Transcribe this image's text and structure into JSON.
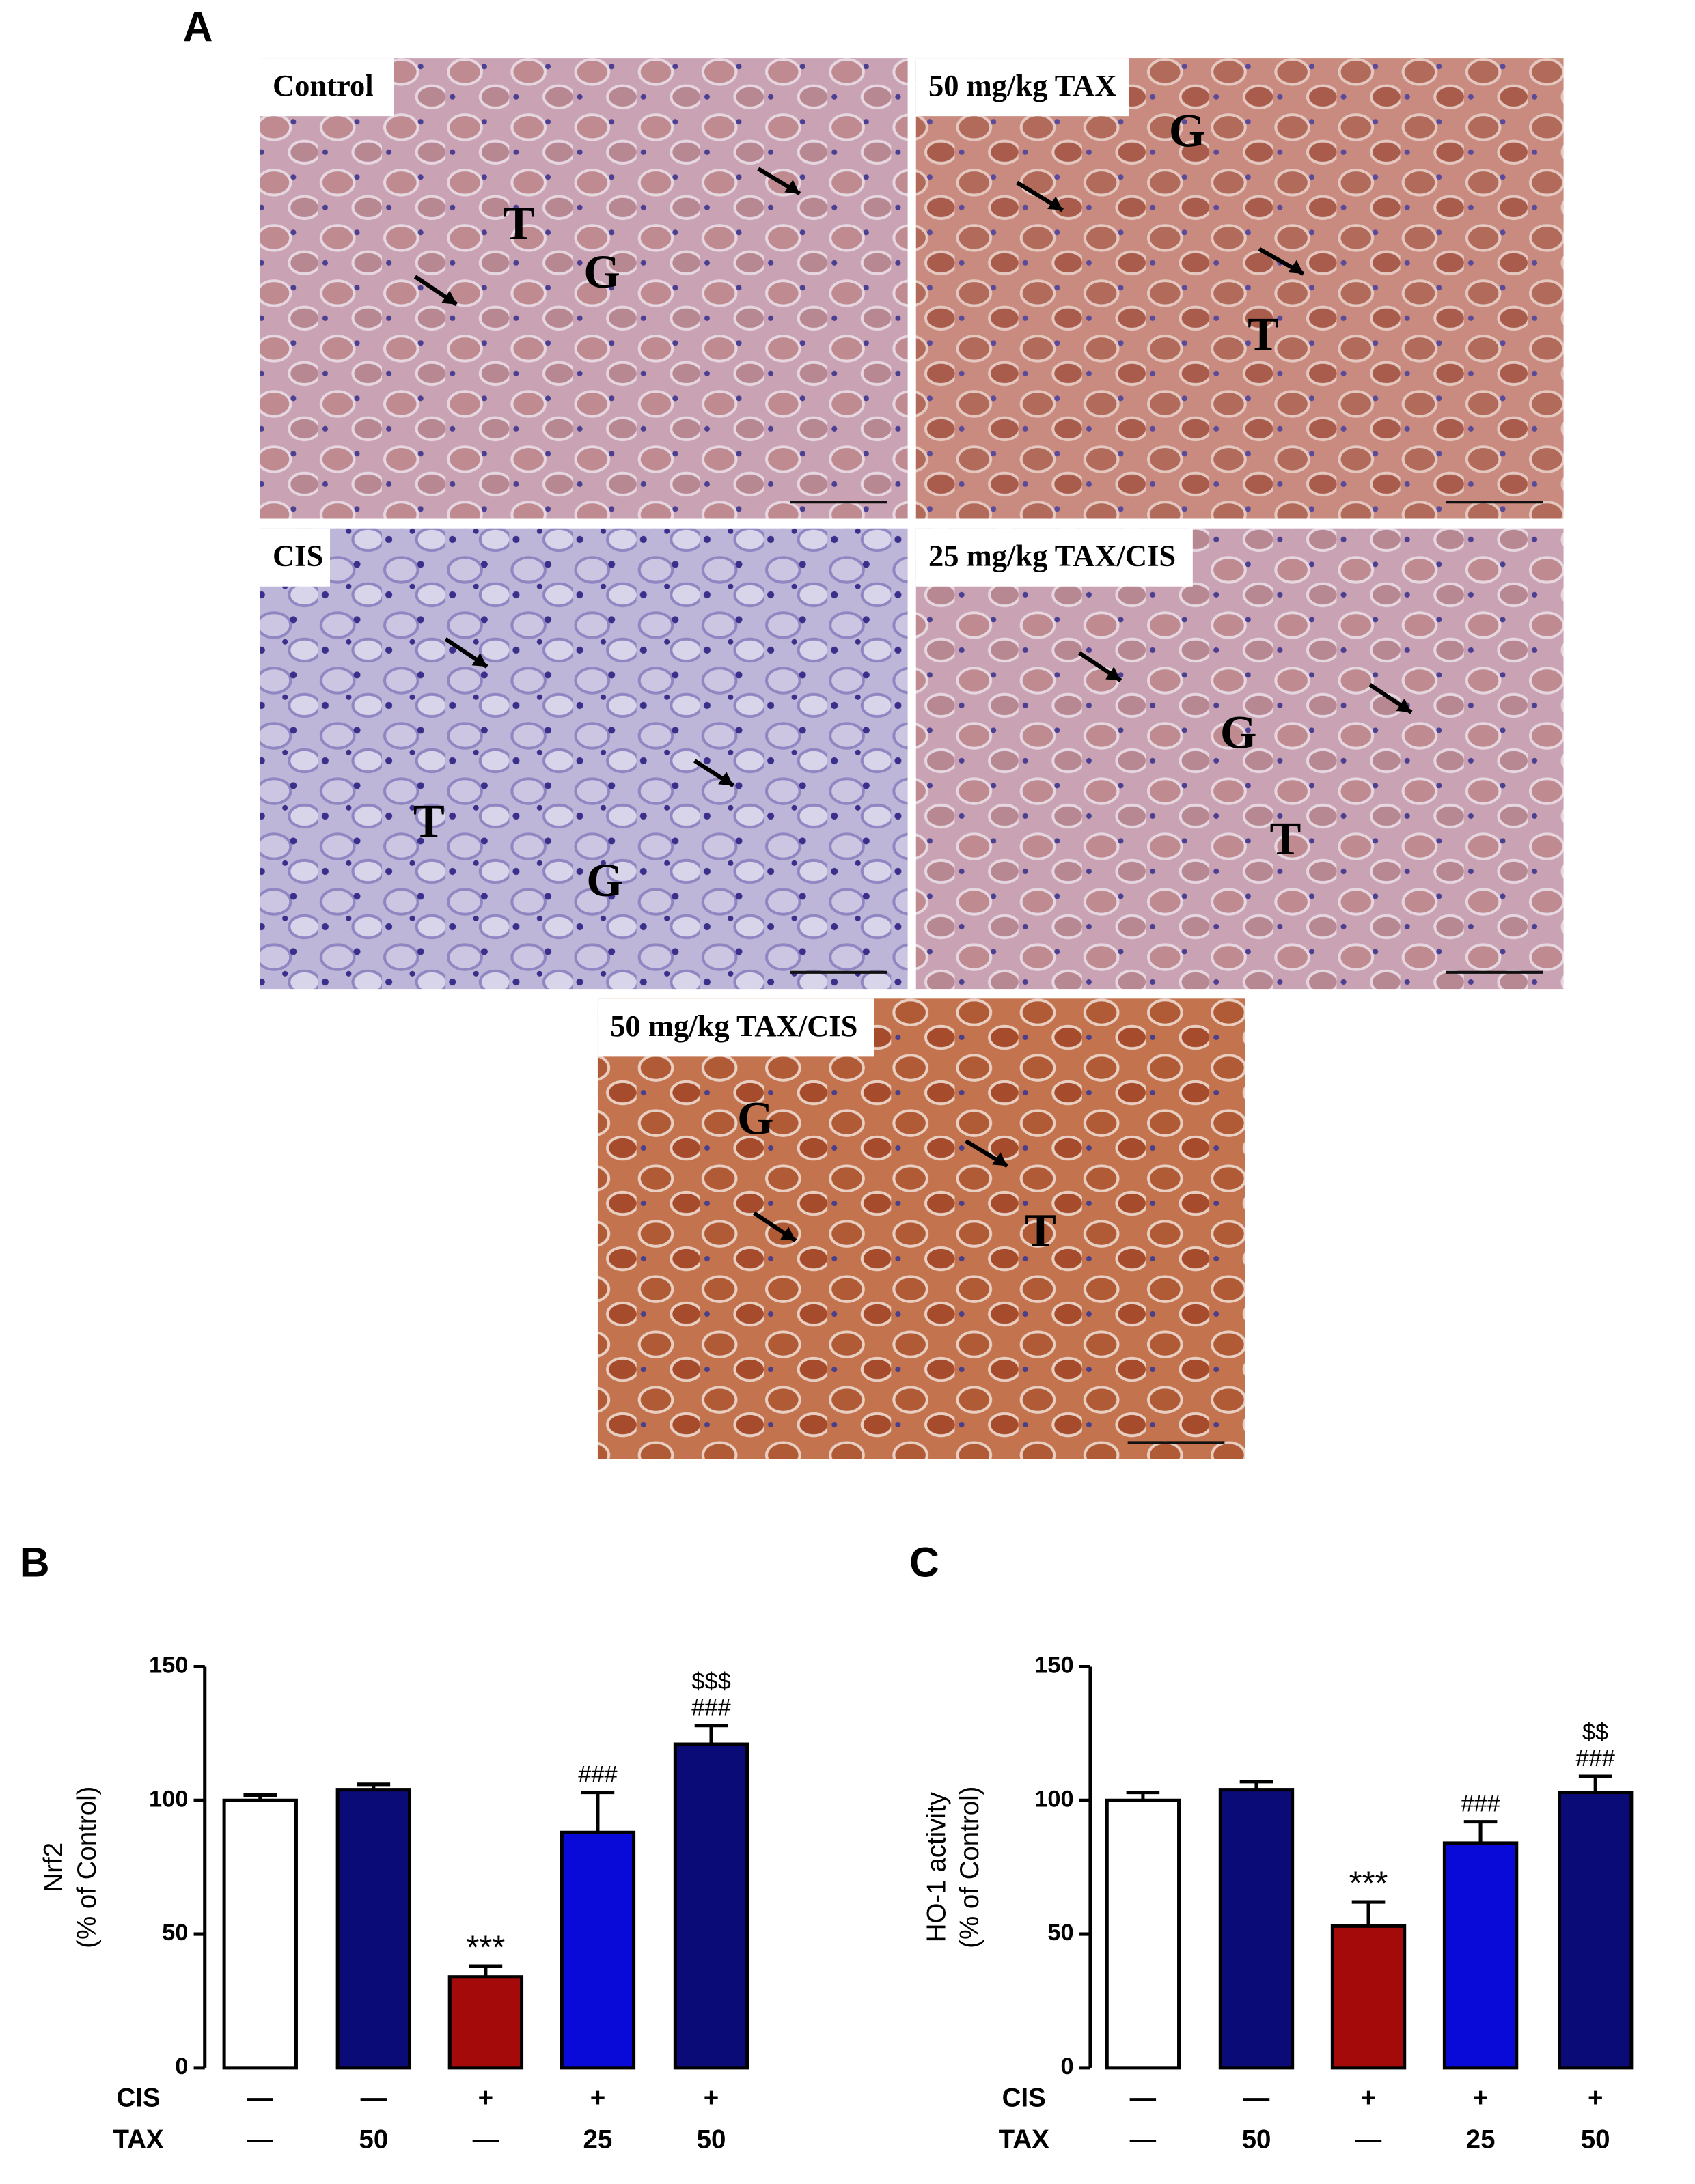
{
  "panel_labels": [
    "A",
    "B",
    "C"
  ],
  "micrographs": [
    {
      "title": "Control",
      "annotations": [
        "T",
        "G"
      ]
    },
    {
      "title": "50 mg/kg TAX",
      "annotations": [
        "G",
        "T"
      ]
    },
    {
      "title": "CIS",
      "annotations": [
        "T",
        "G"
      ]
    },
    {
      "title": "25 mg/kg TAX/CIS",
      "annotations": [
        "G",
        "T"
      ]
    },
    {
      "title": "50 mg/kg TAX/CIS",
      "annotations": [
        "G",
        "T"
      ]
    }
  ],
  "chart_data": [
    {
      "type": "bar",
      "ylabel_lines": [
        "Nrf2",
        "(% of Control)"
      ],
      "values": [
        100,
        104,
        34,
        88,
        121
      ],
      "errors": [
        2,
        2,
        4,
        15,
        7
      ],
      "colors": [
        "#ffffff",
        "#0b0b78",
        "#a50a0a",
        "#0a0ad8",
        "#0b0b78"
      ],
      "annotations": [
        [],
        [],
        [
          "***"
        ],
        [
          "###"
        ],
        [
          "$$$",
          "###"
        ]
      ],
      "treatments": [
        {
          "name": "CIS",
          "levels": [
            "—",
            "—",
            "+",
            "+",
            "+"
          ]
        },
        {
          "name": "TAX",
          "levels": [
            "—",
            "50",
            "—",
            "25",
            "50"
          ]
        }
      ],
      "ylim": [
        0,
        150
      ],
      "yticks": [
        0,
        50,
        100,
        150
      ]
    },
    {
      "type": "bar",
      "ylabel_lines": [
        "HO-1 activity",
        "(% of Control)"
      ],
      "values": [
        100,
        104,
        53,
        84,
        103
      ],
      "errors": [
        3,
        3,
        9,
        8,
        6
      ],
      "colors": [
        "#ffffff",
        "#0b0b78",
        "#a50a0a",
        "#0a0ad8",
        "#0b0b78"
      ],
      "annotations": [
        [],
        [],
        [
          "***"
        ],
        [
          "###"
        ],
        [
          "$$",
          "###"
        ]
      ],
      "treatments": [
        {
          "name": "CIS",
          "levels": [
            "—",
            "—",
            "+",
            "+",
            "+"
          ]
        },
        {
          "name": "TAX",
          "levels": [
            "—",
            "50",
            "—",
            "25",
            "50"
          ]
        }
      ],
      "ylim": [
        0,
        150
      ],
      "yticks": [
        0,
        50,
        100,
        150
      ]
    }
  ]
}
